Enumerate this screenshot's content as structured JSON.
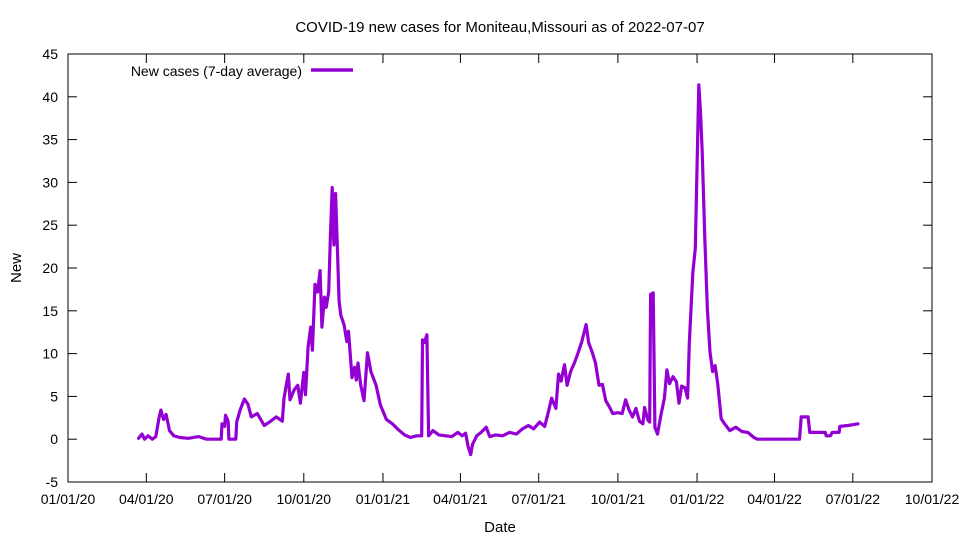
{
  "chart_data": {
    "type": "line",
    "title": "COVID-19 new cases for Moniteau,Missouri as of 2022-07-07",
    "xlabel": "Date",
    "ylabel": "New",
    "xlim": [
      "2020-01-01",
      "2022-10-01"
    ],
    "ylim": [
      -5,
      45
    ],
    "x_ticks": [
      "01/01/20",
      "04/01/20",
      "07/01/20",
      "10/01/20",
      "01/01/21",
      "04/01/21",
      "07/01/21",
      "10/01/21",
      "01/01/22",
      "04/01/22",
      "07/01/22",
      "10/01/22"
    ],
    "y_ticks": [
      -5,
      0,
      5,
      10,
      15,
      20,
      25,
      30,
      35,
      40,
      45
    ],
    "legend_position": "top-left",
    "grid": false,
    "series": [
      {
        "name": "New cases (7-day average)",
        "color": "#9400d3",
        "points": [
          [
            "2020-03-23",
            0.1
          ],
          [
            "2020-03-27",
            0.6
          ],
          [
            "2020-03-30",
            0.0
          ],
          [
            "2020-04-03",
            0.4
          ],
          [
            "2020-04-08",
            0.0
          ],
          [
            "2020-04-12",
            0.3
          ],
          [
            "2020-04-16",
            2.6
          ],
          [
            "2020-04-18",
            3.4
          ],
          [
            "2020-04-21",
            2.3
          ],
          [
            "2020-04-24",
            2.9
          ],
          [
            "2020-04-28",
            1.0
          ],
          [
            "2020-05-03",
            0.4
          ],
          [
            "2020-05-10",
            0.2
          ],
          [
            "2020-05-20",
            0.1
          ],
          [
            "2020-06-01",
            0.3
          ],
          [
            "2020-06-10",
            0.0
          ],
          [
            "2020-06-20",
            0.0
          ],
          [
            "2020-06-27",
            0.0
          ],
          [
            "2020-06-28",
            1.8
          ],
          [
            "2020-07-01",
            1.5
          ],
          [
            "2020-07-02",
            2.8
          ],
          [
            "2020-07-05",
            2.1
          ],
          [
            "2020-07-06",
            0.0
          ],
          [
            "2020-07-14",
            0.0
          ],
          [
            "2020-07-15",
            2.0
          ],
          [
            "2020-07-19",
            3.4
          ],
          [
            "2020-07-24",
            4.7
          ],
          [
            "2020-07-28",
            4.1
          ],
          [
            "2020-08-01",
            2.6
          ],
          [
            "2020-08-08",
            3.0
          ],
          [
            "2020-08-16",
            1.6
          ],
          [
            "2020-08-22",
            2.0
          ],
          [
            "2020-08-30",
            2.6
          ],
          [
            "2020-09-06",
            2.1
          ],
          [
            "2020-09-08",
            4.8
          ],
          [
            "2020-09-13",
            7.6
          ],
          [
            "2020-09-15",
            4.6
          ],
          [
            "2020-09-20",
            5.8
          ],
          [
            "2020-09-24",
            6.3
          ],
          [
            "2020-09-27",
            4.2
          ],
          [
            "2020-10-01",
            7.8
          ],
          [
            "2020-10-03",
            5.2
          ],
          [
            "2020-10-06",
            10.8
          ],
          [
            "2020-10-09",
            13.1
          ],
          [
            "2020-10-11",
            10.4
          ],
          [
            "2020-10-14",
            18.1
          ],
          [
            "2020-10-17",
            17.2
          ],
          [
            "2020-10-20",
            19.7
          ],
          [
            "2020-10-22",
            13.1
          ],
          [
            "2020-10-25",
            16.6
          ],
          [
            "2020-10-27",
            15.4
          ],
          [
            "2020-10-30",
            17.2
          ],
          [
            "2020-11-01",
            24.1
          ],
          [
            "2020-11-03",
            29.4
          ],
          [
            "2020-11-05",
            22.7
          ],
          [
            "2020-11-07",
            28.7
          ],
          [
            "2020-11-09",
            22.2
          ],
          [
            "2020-11-11",
            16.1
          ],
          [
            "2020-11-13",
            14.5
          ],
          [
            "2020-11-17",
            13.3
          ],
          [
            "2020-11-20",
            11.4
          ],
          [
            "2020-11-22",
            12.6
          ],
          [
            "2020-11-26",
            7.2
          ],
          [
            "2020-11-29",
            8.4
          ],
          [
            "2020-12-01",
            6.9
          ],
          [
            "2020-12-03",
            8.9
          ],
          [
            "2020-12-06",
            6.4
          ],
          [
            "2020-12-10",
            4.5
          ],
          [
            "2020-12-14",
            10.1
          ],
          [
            "2020-12-18",
            7.9
          ],
          [
            "2020-12-24",
            6.3
          ],
          [
            "2020-12-29",
            4.0
          ],
          [
            "2021-01-05",
            2.3
          ],
          [
            "2021-01-12",
            1.8
          ],
          [
            "2021-01-19",
            1.1
          ],
          [
            "2021-01-26",
            0.5
          ],
          [
            "2021-02-02",
            0.2
          ],
          [
            "2021-02-09",
            0.4
          ],
          [
            "2021-02-15",
            0.4
          ],
          [
            "2021-02-16",
            11.6
          ],
          [
            "2021-02-18",
            11.3
          ],
          [
            "2021-02-21",
            12.2
          ],
          [
            "2021-02-23",
            0.4
          ],
          [
            "2021-02-28",
            1.0
          ],
          [
            "2021-03-07",
            0.5
          ],
          [
            "2021-03-15",
            0.4
          ],
          [
            "2021-03-22",
            0.3
          ],
          [
            "2021-03-29",
            0.8
          ],
          [
            "2021-04-03",
            0.4
          ],
          [
            "2021-04-07",
            0.7
          ],
          [
            "2021-04-10",
            -0.9
          ],
          [
            "2021-04-13",
            -1.8
          ],
          [
            "2021-04-15",
            -0.6
          ],
          [
            "2021-04-20",
            0.4
          ],
          [
            "2021-04-25",
            0.8
          ],
          [
            "2021-05-01",
            1.4
          ],
          [
            "2021-05-05",
            0.3
          ],
          [
            "2021-05-12",
            0.5
          ],
          [
            "2021-05-20",
            0.4
          ],
          [
            "2021-05-28",
            0.8
          ],
          [
            "2021-06-05",
            0.6
          ],
          [
            "2021-06-12",
            1.2
          ],
          [
            "2021-06-19",
            1.6
          ],
          [
            "2021-06-25",
            1.2
          ],
          [
            "2021-07-02",
            2.0
          ],
          [
            "2021-07-08",
            1.5
          ],
          [
            "2021-07-12",
            3.1
          ],
          [
            "2021-07-16",
            4.8
          ],
          [
            "2021-07-21",
            3.6
          ],
          [
            "2021-07-24",
            7.6
          ],
          [
            "2021-07-27",
            6.8
          ],
          [
            "2021-07-31",
            8.7
          ],
          [
            "2021-08-03",
            6.3
          ],
          [
            "2021-08-07",
            7.9
          ],
          [
            "2021-08-11",
            8.8
          ],
          [
            "2021-08-15",
            9.9
          ],
          [
            "2021-08-20",
            11.4
          ],
          [
            "2021-08-25",
            13.4
          ],
          [
            "2021-08-28",
            11.3
          ],
          [
            "2021-09-01",
            10.2
          ],
          [
            "2021-09-05",
            8.9
          ],
          [
            "2021-09-09",
            6.3
          ],
          [
            "2021-09-13",
            6.4
          ],
          [
            "2021-09-17",
            4.5
          ],
          [
            "2021-09-21",
            3.8
          ],
          [
            "2021-09-25",
            3.0
          ],
          [
            "2021-10-01",
            3.1
          ],
          [
            "2021-10-06",
            3.0
          ],
          [
            "2021-10-10",
            4.6
          ],
          [
            "2021-10-14",
            3.4
          ],
          [
            "2021-10-18",
            2.6
          ],
          [
            "2021-10-22",
            3.6
          ],
          [
            "2021-10-26",
            2.1
          ],
          [
            "2021-10-30",
            1.8
          ],
          [
            "2021-11-01",
            3.7
          ],
          [
            "2021-11-05",
            2.2
          ],
          [
            "2021-11-07",
            2.0
          ],
          [
            "2021-11-08",
            16.9
          ],
          [
            "2021-11-11",
            17.1
          ],
          [
            "2021-11-13",
            1.4
          ],
          [
            "2021-11-16",
            0.6
          ],
          [
            "2021-11-20",
            2.8
          ],
          [
            "2021-11-24",
            4.8
          ],
          [
            "2021-11-27",
            8.1
          ],
          [
            "2021-11-30",
            6.5
          ],
          [
            "2021-12-04",
            7.3
          ],
          [
            "2021-12-08",
            6.7
          ],
          [
            "2021-12-11",
            4.2
          ],
          [
            "2021-12-14",
            6.2
          ],
          [
            "2021-12-18",
            6.0
          ],
          [
            "2021-12-21",
            4.8
          ],
          [
            "2021-12-23",
            11.2
          ],
          [
            "2021-12-27",
            19.4
          ],
          [
            "2021-12-30",
            22.3
          ],
          [
            "2022-01-03",
            41.4
          ],
          [
            "2022-01-05",
            38.2
          ],
          [
            "2022-01-07",
            33.6
          ],
          [
            "2022-01-10",
            23.5
          ],
          [
            "2022-01-13",
            15.1
          ],
          [
            "2022-01-16",
            10.2
          ],
          [
            "2022-01-19",
            7.9
          ],
          [
            "2022-01-22",
            8.6
          ],
          [
            "2022-01-25",
            6.5
          ],
          [
            "2022-01-29",
            2.4
          ],
          [
            "2022-02-02",
            1.8
          ],
          [
            "2022-02-08",
            1.0
          ],
          [
            "2022-02-15",
            1.4
          ],
          [
            "2022-02-22",
            0.9
          ],
          [
            "2022-03-01",
            0.8
          ],
          [
            "2022-03-08",
            0.2
          ],
          [
            "2022-03-12",
            0.0
          ],
          [
            "2022-03-20",
            0.0
          ],
          [
            "2022-04-01",
            0.0
          ],
          [
            "2022-04-15",
            0.0
          ],
          [
            "2022-04-30",
            0.0
          ],
          [
            "2022-05-02",
            2.6
          ],
          [
            "2022-05-10",
            2.6
          ],
          [
            "2022-05-12",
            0.8
          ],
          [
            "2022-05-22",
            0.8
          ],
          [
            "2022-05-30",
            0.8
          ],
          [
            "2022-05-31",
            0.4
          ],
          [
            "2022-06-05",
            0.4
          ],
          [
            "2022-06-07",
            0.8
          ],
          [
            "2022-06-15",
            0.8
          ],
          [
            "2022-06-16",
            1.5
          ],
          [
            "2022-06-25",
            1.6
          ],
          [
            "2022-07-02",
            1.7
          ],
          [
            "2022-07-07",
            1.8
          ]
        ]
      }
    ]
  }
}
